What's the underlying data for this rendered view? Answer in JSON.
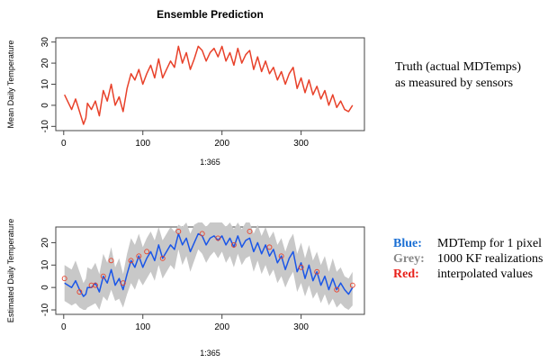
{
  "chart_data": [
    {
      "type": "line",
      "title": "Ensemble Prediction",
      "xlabel": "1:365",
      "ylabel": "Mean Daily Temperature",
      "xlim": [
        0,
        365
      ],
      "ylim": [
        -10,
        30
      ],
      "xticks": [
        0,
        100,
        200,
        300
      ],
      "yticks": [
        -10,
        0,
        10,
        20,
        30
      ],
      "grid": false,
      "series": [
        {
          "color": "#e8412a",
          "x": [
            1,
            10,
            15,
            20,
            25,
            28,
            30,
            35,
            40,
            45,
            50,
            55,
            60,
            65,
            70,
            75,
            80,
            85,
            90,
            95,
            100,
            105,
            110,
            115,
            120,
            125,
            130,
            135,
            140,
            145,
            150,
            155,
            160,
            165,
            170,
            175,
            180,
            185,
            190,
            195,
            200,
            205,
            210,
            215,
            220,
            225,
            230,
            235,
            240,
            245,
            250,
            255,
            260,
            265,
            270,
            275,
            280,
            285,
            290,
            295,
            300,
            305,
            310,
            315,
            320,
            325,
            330,
            335,
            340,
            345,
            350,
            355,
            360,
            365
          ],
          "y": [
            5,
            -2,
            3,
            -3,
            -9,
            -6,
            1,
            -2,
            2,
            -5,
            7,
            2,
            10,
            0,
            4,
            -3,
            8,
            15,
            12,
            17,
            10,
            15,
            19,
            13,
            22,
            13,
            17,
            21,
            18,
            28,
            20,
            25,
            17,
            22,
            28,
            26,
            21,
            25,
            27,
            23,
            28,
            21,
            25,
            19,
            27,
            20,
            24,
            26,
            17,
            23,
            16,
            21,
            15,
            18,
            12,
            16,
            10,
            15,
            18,
            8,
            13,
            6,
            12,
            5,
            9,
            3,
            7,
            0,
            5,
            -1,
            2,
            -2,
            -3,
            0
          ]
        }
      ]
    },
    {
      "type": "line",
      "title": "",
      "xlabel": "1:365",
      "ylabel": "Estimated Daily Temperature",
      "xlim": [
        0,
        365
      ],
      "ylim": [
        -10,
        25
      ],
      "xticks": [
        0,
        100,
        200,
        300
      ],
      "yticks": [
        -10,
        0,
        10,
        20
      ],
      "grid": false,
      "series": [
        {
          "name": "Grey",
          "color": "#c8c8c8",
          "band": true,
          "x": [
            1,
            10,
            15,
            20,
            25,
            28,
            30,
            35,
            40,
            45,
            50,
            55,
            60,
            65,
            70,
            75,
            80,
            85,
            90,
            95,
            100,
            105,
            110,
            115,
            120,
            125,
            130,
            135,
            140,
            145,
            150,
            155,
            160,
            165,
            170,
            175,
            180,
            185,
            190,
            195,
            200,
            205,
            210,
            215,
            220,
            225,
            230,
            235,
            240,
            245,
            250,
            255,
            260,
            265,
            270,
            275,
            280,
            285,
            290,
            295,
            300,
            305,
            310,
            315,
            320,
            325,
            330,
            335,
            340,
            345,
            350,
            355,
            360,
            365
          ],
          "lower": [
            -6,
            -8,
            -7,
            -9,
            -10,
            -10,
            -9,
            -8,
            -7,
            -10,
            -4,
            -6,
            -1,
            -6,
            -5,
            -9,
            -3,
            2,
            -1,
            4,
            1,
            4,
            7,
            3,
            10,
            4,
            7,
            10,
            8,
            17,
            10,
            14,
            7,
            12,
            17,
            15,
            11,
            14,
            16,
            13,
            16,
            11,
            14,
            9,
            15,
            10,
            13,
            14,
            7,
            12,
            6,
            10,
            5,
            8,
            2,
            5,
            0,
            4,
            7,
            -2,
            2,
            -4,
            1,
            -5,
            -2,
            -7,
            -3,
            -8,
            -5,
            -9,
            -7,
            -9,
            -10,
            -8
          ],
          "upper": [
            10,
            8,
            12,
            7,
            2,
            4,
            9,
            8,
            11,
            6,
            15,
            11,
            18,
            9,
            13,
            6,
            15,
            22,
            19,
            24,
            18,
            22,
            25,
            21,
            27,
            21,
            24,
            27,
            25,
            28,
            27,
            29,
            24,
            28,
            29,
            29,
            27,
            29,
            29,
            29,
            29,
            27,
            29,
            26,
            29,
            26,
            29,
            29,
            24,
            28,
            23,
            27,
            22,
            25,
            19,
            22,
            16,
            21,
            24,
            15,
            20,
            13,
            19,
            12,
            16,
            10,
            14,
            7,
            13,
            7,
            9,
            5,
            4,
            7
          ]
        },
        {
          "name": "Blue",
          "color": "#1a56e8",
          "x": [
            1,
            10,
            15,
            20,
            25,
            28,
            30,
            35,
            40,
            45,
            50,
            55,
            60,
            65,
            70,
            75,
            80,
            85,
            90,
            95,
            100,
            105,
            110,
            115,
            120,
            125,
            130,
            135,
            140,
            145,
            150,
            155,
            160,
            165,
            170,
            175,
            180,
            185,
            190,
            195,
            200,
            205,
            210,
            215,
            220,
            225,
            230,
            235,
            240,
            245,
            250,
            255,
            260,
            265,
            270,
            275,
            280,
            285,
            290,
            295,
            300,
            305,
            310,
            315,
            320,
            325,
            330,
            335,
            340,
            345,
            350,
            355,
            360,
            365
          ],
          "y": [
            2,
            0,
            3,
            -1,
            -4,
            -3,
            0,
            0,
            2,
            -2,
            5,
            2,
            8,
            1,
            4,
            -1,
            6,
            12,
            9,
            14,
            9,
            13,
            16,
            12,
            19,
            13,
            16,
            19,
            17,
            24,
            19,
            22,
            16,
            20,
            24,
            23,
            19,
            22,
            23,
            21,
            23,
            19,
            22,
            18,
            23,
            18,
            21,
            22,
            16,
            20,
            15,
            19,
            14,
            17,
            11,
            14,
            8,
            13,
            16,
            7,
            11,
            4,
            10,
            3,
            7,
            1,
            5,
            -1,
            4,
            -1,
            2,
            -1,
            -3,
            0
          ]
        },
        {
          "name": "Red",
          "color": "#e8412a",
          "markers": true,
          "x": [
            1,
            20,
            35,
            40,
            50,
            60,
            75,
            85,
            95,
            105,
            125,
            145,
            175,
            195,
            215,
            235,
            260,
            275,
            300,
            320,
            345,
            365
          ],
          "y": [
            4,
            -2,
            1,
            1,
            5,
            12,
            2,
            12,
            14,
            16,
            13,
            25,
            24,
            22,
            19,
            25,
            18,
            14,
            9,
            7,
            -1,
            1
          ]
        }
      ]
    }
  ],
  "notes": {
    "truth_line1": "Truth  (actual  MDTemps)",
    "truth_line2": "as measured by sensors"
  },
  "legend": [
    {
      "key": "Blue:",
      "text": "MDTemp for 1 pixel",
      "color": "#1a6fd4"
    },
    {
      "key": "Grey:",
      "text": "1000 KF realizations",
      "color": "#888888"
    },
    {
      "key": "Red:",
      "text": "interpolated values",
      "color": "#e8201a"
    }
  ]
}
